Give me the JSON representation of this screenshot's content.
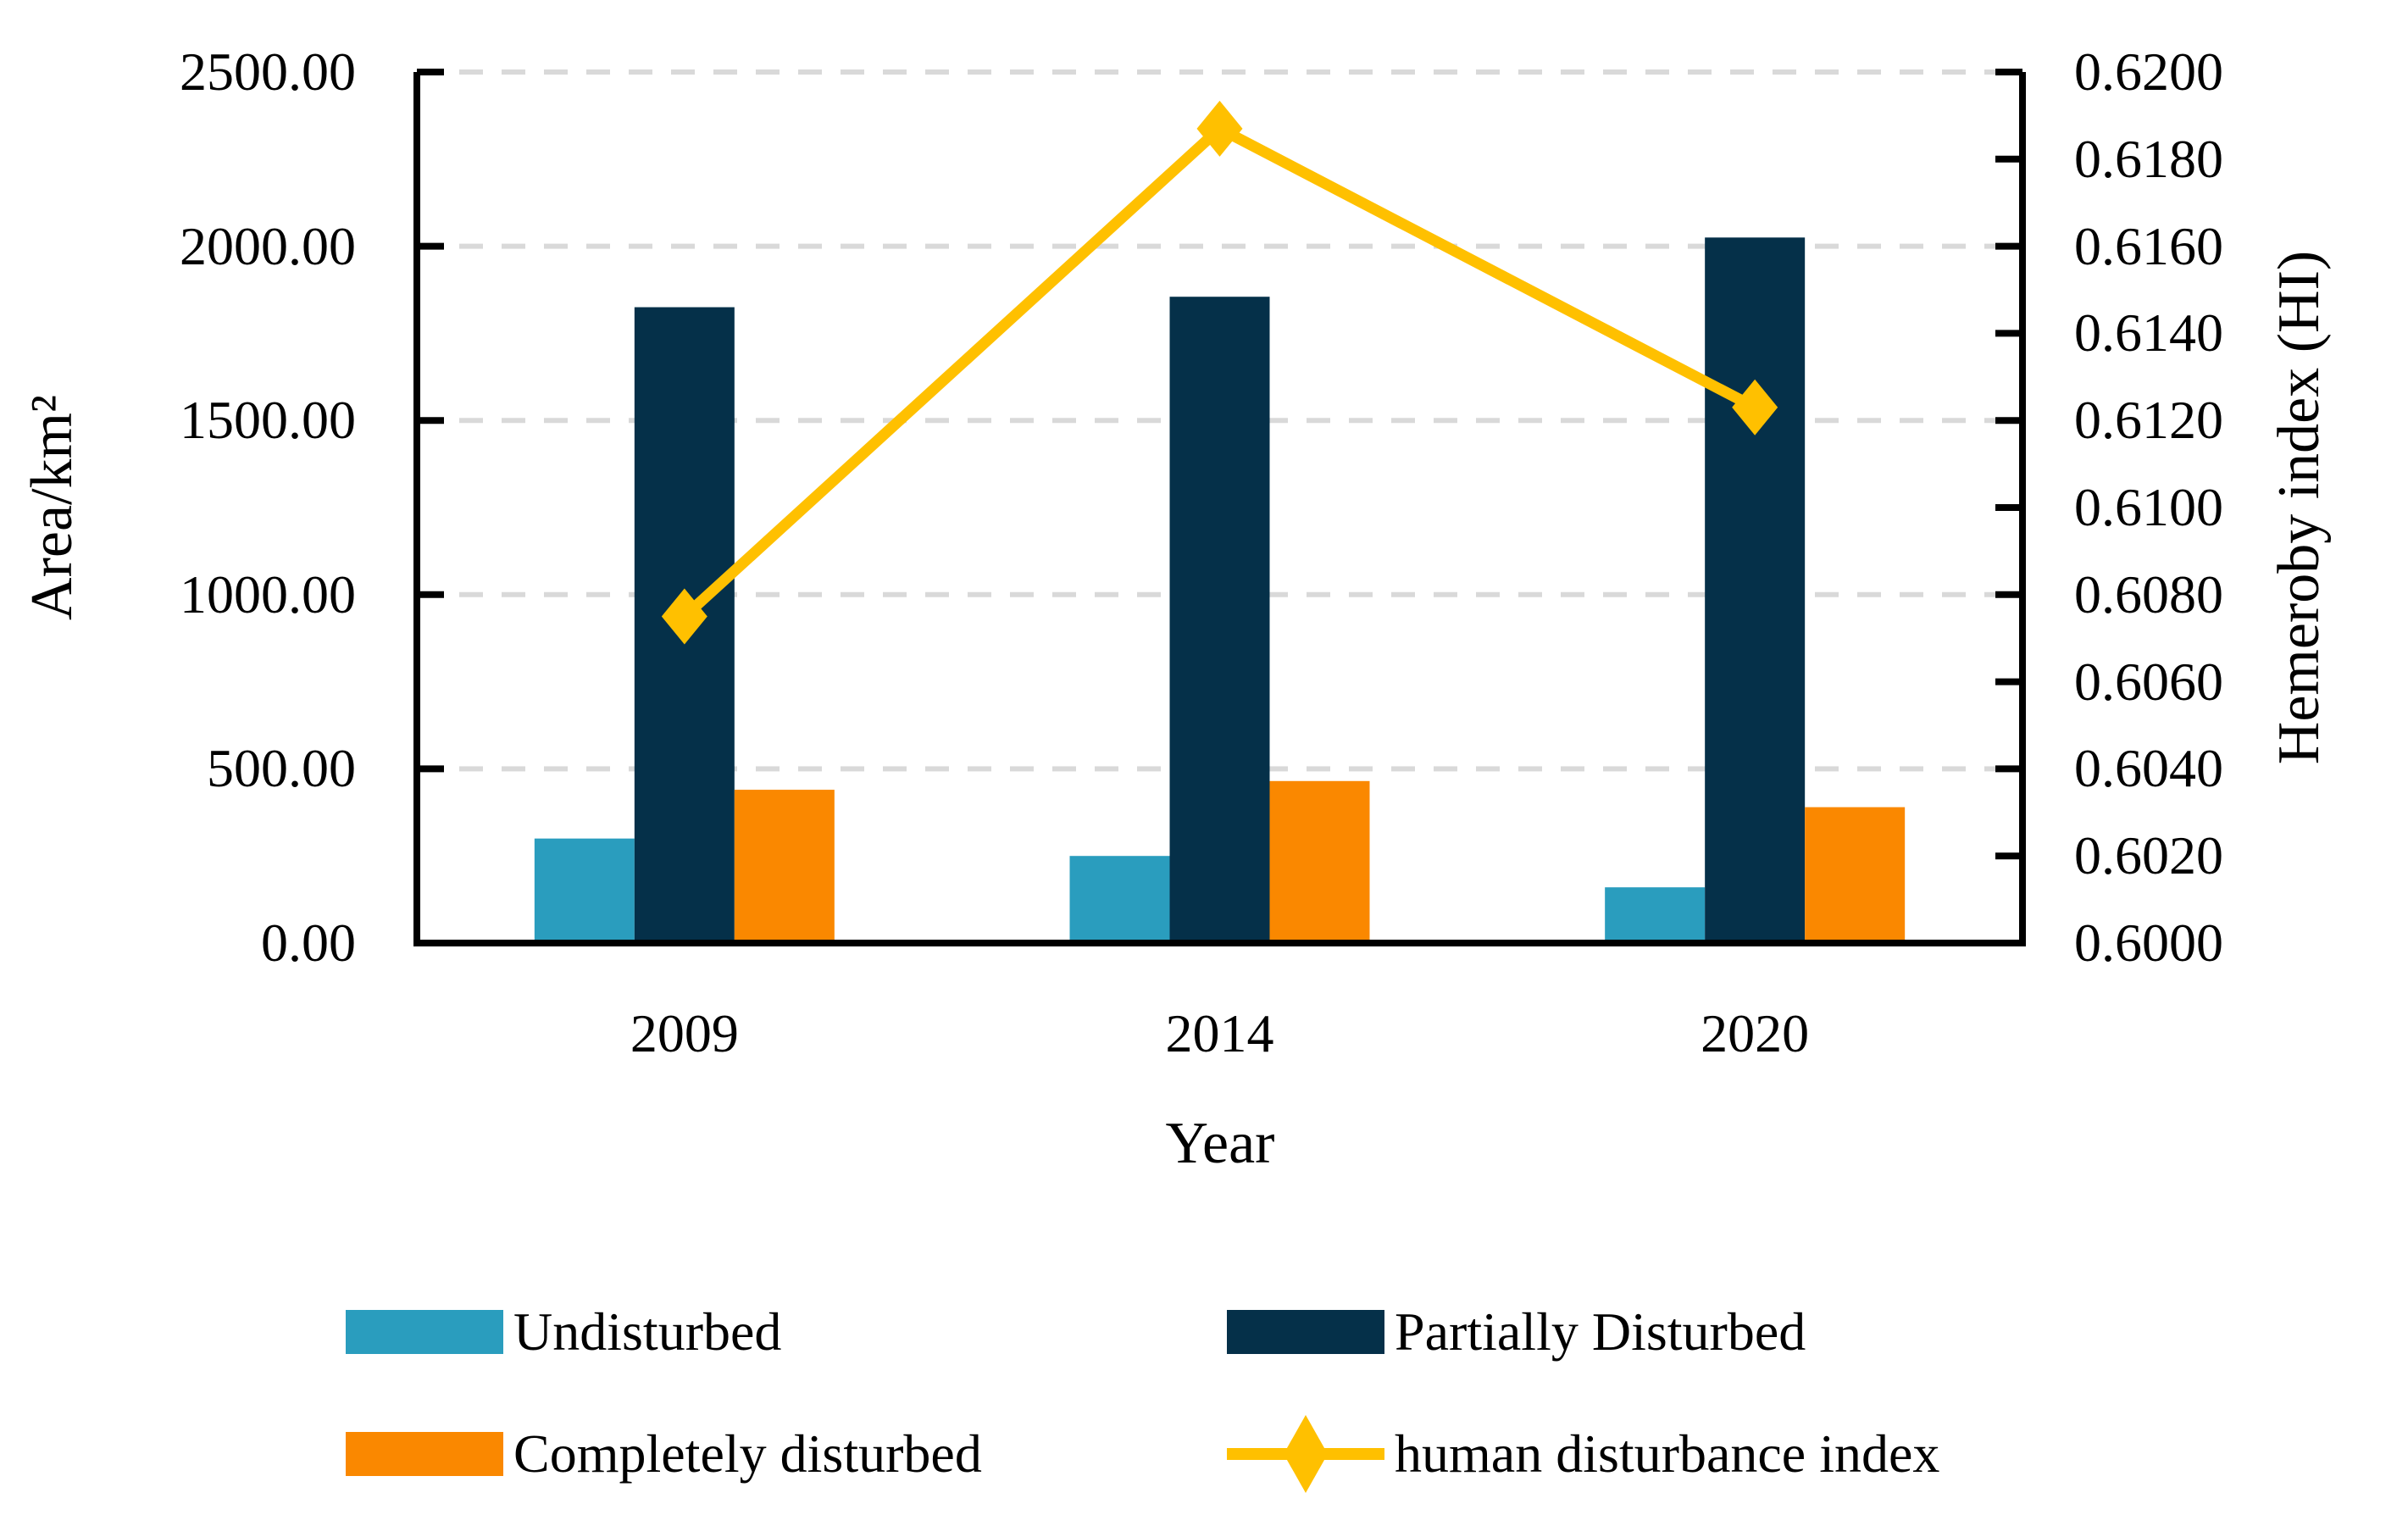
{
  "chart_data": {
    "type": "bar",
    "combo": "grouped bars on left axis + line with diamond markers on right axis",
    "title": "",
    "categories": [
      "2009",
      "2014",
      "2020"
    ],
    "series": [
      {
        "name": "Undisturbed",
        "type": "bar",
        "axis": "left",
        "color": "#2A9DBE",
        "values": [
          300,
          250,
          160
        ]
      },
      {
        "name": "Partially Disturbed",
        "type": "bar",
        "axis": "left",
        "color": "#053049",
        "values": [
          1825,
          1855,
          2025
        ]
      },
      {
        "name": "Completely disturbed",
        "type": "bar",
        "axis": "left",
        "color": "#FA8800",
        "values": [
          440,
          465,
          390
        ]
      },
      {
        "name": "human disturbance index",
        "type": "line",
        "axis": "right",
        "color": "#FFC000",
        "marker": "diamond",
        "values": [
          0.6075,
          0.6187,
          0.6123
        ]
      }
    ],
    "x_axis": {
      "label": "Year"
    },
    "left_axis": {
      "label": "Area/km²",
      "min": 0,
      "max": 2500,
      "tick_step": 500,
      "tick_labels": [
        "0.00",
        "500.00",
        "1000.00",
        "1500.00",
        "2000.00",
        "2500.00"
      ]
    },
    "right_axis": {
      "label": "Hemeroby index (HI)",
      "min": 0.6,
      "max": 0.62,
      "tick_step": 0.002,
      "tick_labels": [
        "0.6000",
        "0.6020",
        "0.6040",
        "0.6060",
        "0.6080",
        "0.6100",
        "0.6120",
        "0.6140",
        "0.6160",
        "0.6180",
        "0.6200"
      ]
    },
    "grid": {
      "dashed": true,
      "color": "#D9D9D9",
      "left_axis_values": [
        500,
        1000,
        1500,
        2000,
        2500
      ]
    },
    "axis_color": "#000000",
    "legend_position": "bottom"
  }
}
